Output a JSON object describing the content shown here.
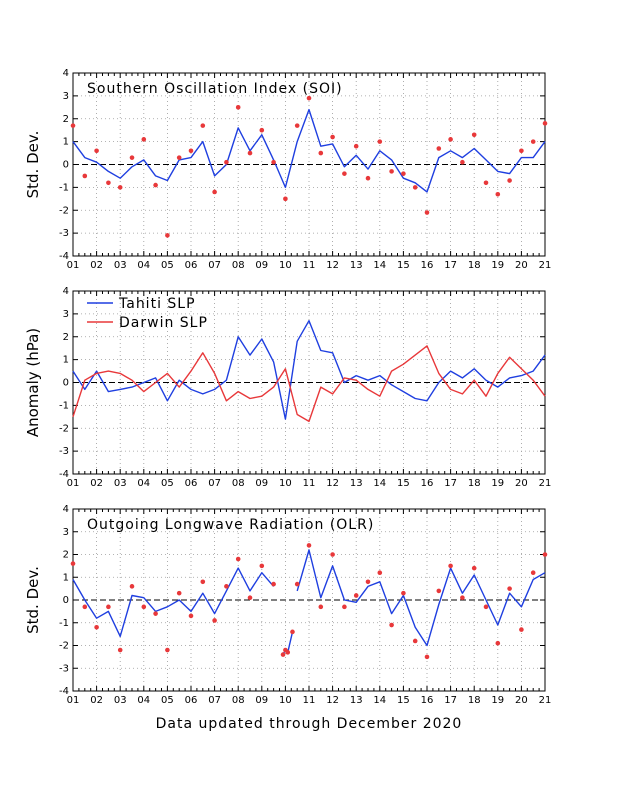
{
  "footer": "Data updated through December 2020",
  "colors": {
    "blue": "#1f3fe0",
    "red": "#e8383a",
    "grid": "#9a9a9a",
    "axis": "#000000"
  },
  "chart_data": [
    {
      "type": "line",
      "title": "Southern Oscillation Index (SOI)",
      "xlabel": "",
      "ylabel": "Std. Dev.",
      "xlim": [
        2001,
        2021
      ],
      "ylim": [
        -4,
        4
      ],
      "x_tick_labels": [
        "01",
        "02",
        "03",
        "04",
        "05",
        "06",
        "07",
        "08",
        "09",
        "10",
        "11",
        "12",
        "13",
        "14",
        "15",
        "16",
        "17",
        "18",
        "19",
        "20",
        "21"
      ],
      "y_ticks": [
        -4,
        -3,
        -2,
        -1,
        0,
        1,
        2,
        3,
        4
      ],
      "grid": true,
      "x": [
        2001.0,
        2001.5,
        2002.0,
        2002.5,
        2003.0,
        2003.5,
        2004.0,
        2004.5,
        2005.0,
        2005.5,
        2006.0,
        2006.5,
        2007.0,
        2007.5,
        2008.0,
        2008.5,
        2009.0,
        2009.5,
        2010.0,
        2010.5,
        2011.0,
        2011.5,
        2012.0,
        2012.5,
        2013.0,
        2013.5,
        2014.0,
        2014.5,
        2015.0,
        2015.5,
        2016.0,
        2016.5,
        2017.0,
        2017.5,
        2018.0,
        2018.5,
        2019.0,
        2019.5,
        2020.0,
        2020.5,
        2021.0
      ],
      "series": [
        {
          "style": "line",
          "color": "blue",
          "values": [
            1.0,
            0.3,
            0.1,
            -0.3,
            -0.6,
            -0.1,
            0.2,
            -0.5,
            -0.7,
            0.2,
            0.3,
            1.0,
            -0.5,
            0.0,
            1.6,
            0.6,
            1.3,
            0.2,
            -1.0,
            1.0,
            2.4,
            0.8,
            0.9,
            -0.1,
            0.4,
            -0.2,
            0.6,
            0.2,
            -0.6,
            -0.8,
            -1.2,
            0.3,
            0.6,
            0.3,
            0.7,
            0.2,
            -0.3,
            -0.4,
            0.3,
            0.3,
            1.0
          ]
        },
        {
          "style": "points",
          "color": "red",
          "values": [
            1.7,
            -0.5,
            0.6,
            -0.8,
            -1.0,
            0.3,
            1.1,
            -0.9,
            -3.1,
            0.3,
            0.6,
            1.7,
            -1.2,
            0.1,
            2.5,
            0.5,
            1.5,
            0.1,
            -1.5,
            1.7,
            2.9,
            0.5,
            1.2,
            -0.4,
            0.8,
            -0.6,
            1.0,
            -0.3,
            -0.4,
            -1.0,
            -2.1,
            0.7,
            1.1,
            0.1,
            1.3,
            -0.8,
            -1.3,
            -0.7,
            0.6,
            1.0,
            1.8
          ]
        }
      ]
    },
    {
      "type": "line",
      "title": "",
      "xlabel": "",
      "ylabel": "Anomaly (hPa)",
      "xlim": [
        2001,
        2021
      ],
      "ylim": [
        -4,
        4
      ],
      "x_tick_labels": [
        "01",
        "02",
        "03",
        "04",
        "05",
        "06",
        "07",
        "08",
        "09",
        "10",
        "11",
        "12",
        "13",
        "14",
        "15",
        "16",
        "17",
        "18",
        "19",
        "20",
        "21"
      ],
      "y_ticks": [
        -4,
        -3,
        -2,
        -1,
        0,
        1,
        2,
        3,
        4
      ],
      "grid": true,
      "legend_position": "top-left",
      "x": [
        2001.0,
        2001.5,
        2002.0,
        2002.5,
        2003.0,
        2003.5,
        2004.0,
        2004.5,
        2005.0,
        2005.5,
        2006.0,
        2006.5,
        2007.0,
        2007.5,
        2008.0,
        2008.5,
        2009.0,
        2009.5,
        2010.0,
        2010.5,
        2011.0,
        2011.5,
        2012.0,
        2012.5,
        2013.0,
        2013.5,
        2014.0,
        2014.5,
        2015.0,
        2015.5,
        2016.0,
        2016.5,
        2017.0,
        2017.5,
        2018.0,
        2018.5,
        2019.0,
        2019.5,
        2020.0,
        2020.5,
        2021.0
      ],
      "series": [
        {
          "name": "Tahiti SLP",
          "style": "line",
          "color": "blue",
          "values": [
            0.5,
            -0.3,
            0.5,
            -0.4,
            -0.3,
            -0.2,
            0.0,
            0.2,
            -0.8,
            0.1,
            -0.3,
            -0.5,
            -0.3,
            0.1,
            2.0,
            1.2,
            1.9,
            0.9,
            -1.6,
            1.8,
            2.7,
            1.4,
            1.3,
            0.0,
            0.3,
            0.1,
            0.3,
            -0.1,
            -0.4,
            -0.7,
            -0.8,
            0.0,
            0.5,
            0.2,
            0.6,
            0.1,
            -0.2,
            0.2,
            0.3,
            0.5,
            1.2
          ]
        },
        {
          "name": "Darwin SLP",
          "style": "line",
          "color": "red",
          "values": [
            -1.5,
            0.1,
            0.4,
            0.5,
            0.4,
            0.1,
            -0.4,
            0.0,
            0.4,
            -0.2,
            0.5,
            1.3,
            0.4,
            -0.8,
            -0.4,
            -0.7,
            -0.6,
            -0.2,
            0.6,
            -1.4,
            -1.7,
            -0.2,
            -0.5,
            0.2,
            0.1,
            -0.3,
            -0.6,
            0.5,
            0.8,
            1.2,
            1.6,
            0.4,
            -0.3,
            -0.5,
            0.1,
            -0.6,
            0.4,
            1.1,
            0.6,
            0.1,
            -0.6
          ]
        }
      ]
    },
    {
      "type": "line",
      "title": "Outgoing Longwave Radiation (OLR)",
      "xlabel": "",
      "ylabel": "Std. Dev.",
      "xlim": [
        2001,
        2021
      ],
      "ylim": [
        -4,
        4
      ],
      "x_tick_labels": [
        "01",
        "02",
        "03",
        "04",
        "05",
        "06",
        "07",
        "08",
        "09",
        "10",
        "11",
        "12",
        "13",
        "14",
        "15",
        "16",
        "17",
        "18",
        "19",
        "20",
        "21"
      ],
      "y_ticks": [
        -4,
        -3,
        -2,
        -1,
        0,
        1,
        2,
        3,
        4
      ],
      "grid": true,
      "x": [
        2001.0,
        2001.5,
        2002.0,
        2002.5,
        2003.0,
        2003.5,
        2004.0,
        2004.5,
        2005.0,
        2005.5,
        2006.0,
        2006.5,
        2007.0,
        2007.5,
        2008.0,
        2008.5,
        2009.0,
        2009.5,
        2010.0,
        2010.5,
        2011.0,
        2011.5,
        2012.0,
        2012.5,
        2013.0,
        2013.5,
        2014.0,
        2014.5,
        2015.0,
        2015.5,
        2016.0,
        2016.5,
        2017.0,
        2017.5,
        2018.0,
        2018.5,
        2019.0,
        2019.5,
        2020.0,
        2020.5,
        2021.0
      ],
      "series": [
        {
          "style": "line",
          "color": "blue",
          "values": [
            0.9,
            0.0,
            -0.8,
            -0.5,
            -1.6,
            0.2,
            0.1,
            -0.5,
            -0.3,
            0.0,
            -0.5,
            0.3,
            -0.6,
            0.4,
            1.4,
            0.4,
            1.2,
            0.6,
            null,
            0.4,
            2.2,
            0.1,
            1.5,
            0.0,
            -0.1,
            0.6,
            0.8,
            -0.6,
            0.2,
            -1.2,
            -2.0,
            -0.2,
            1.4,
            0.3,
            1.1,
            0.0,
            -1.1,
            0.3,
            -0.3,
            0.9,
            1.2
          ]
        },
        {
          "style": "points",
          "color": "red",
          "values": [
            1.6,
            -0.3,
            -1.2,
            -0.3,
            -2.2,
            0.6,
            -0.3,
            -0.6,
            -2.2,
            0.3,
            -0.7,
            0.8,
            -0.9,
            0.6,
            1.8,
            0.1,
            1.5,
            0.7,
            null,
            0.7,
            2.4,
            -0.3,
            2.0,
            -0.3,
            0.2,
            0.8,
            1.2,
            -1.1,
            0.3,
            -1.8,
            -2.5,
            0.4,
            1.5,
            0.1,
            1.4,
            -0.3,
            -1.9,
            0.5,
            -1.3,
            1.2,
            2.0
          ]
        }
      ],
      "segment": {
        "x": [
          2009.9,
          2010.0,
          2010.1,
          2010.3
        ],
        "values": [
          -2.4,
          -2.2,
          -2.3,
          -1.4
        ]
      }
    }
  ]
}
